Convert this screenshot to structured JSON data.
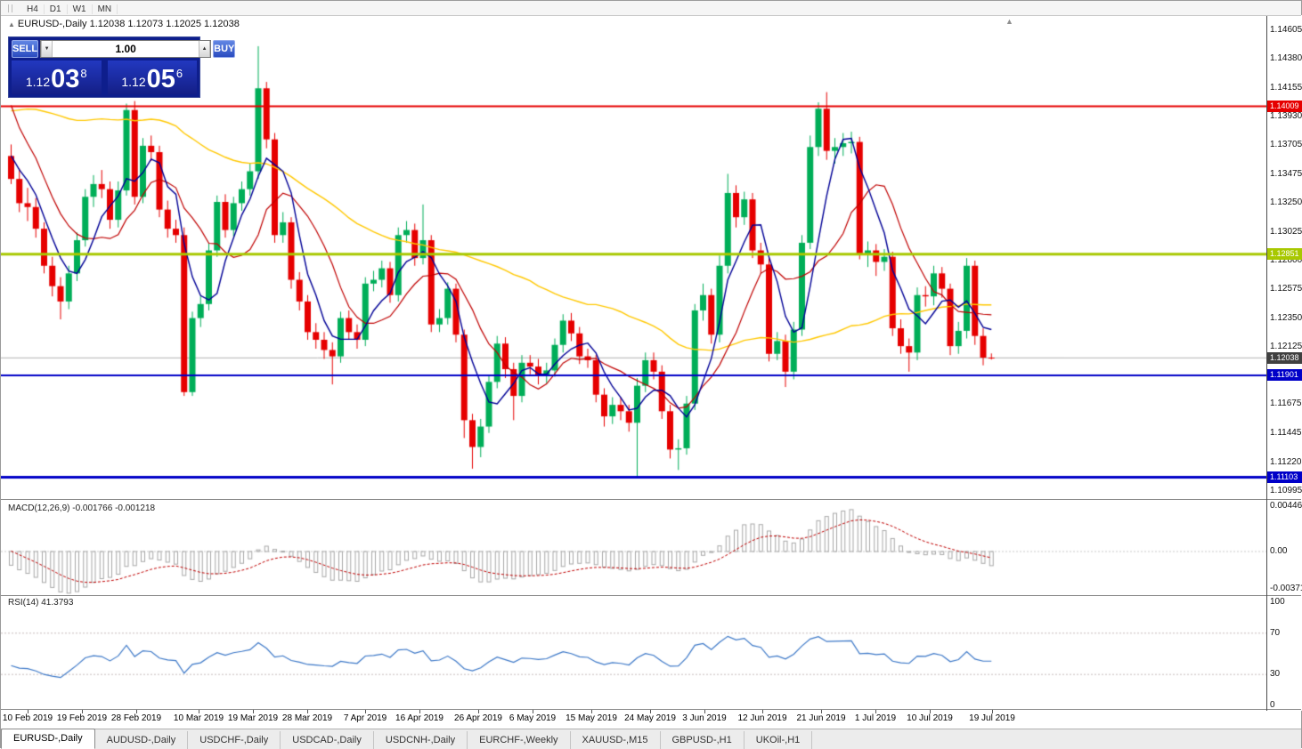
{
  "toolbar": {
    "timeframes": [
      "H4",
      "D1",
      "W1",
      "MN"
    ]
  },
  "chart_header": {
    "title": "EURUSD-,Daily 1.12038 1.12073 1.12025 1.12038"
  },
  "icons": {
    "collapse_arrow": "▲",
    "scroll_marker": "▲",
    "spin_down": "▼",
    "spin_up": "▲"
  },
  "trade_panel": {
    "sell_label": "SELL",
    "buy_label": "BUY",
    "volume": "1.00",
    "sell_price": {
      "prefix": "1.12",
      "big": "03",
      "sup": "8"
    },
    "buy_price": {
      "prefix": "1.12",
      "big": "05",
      "sup": "6"
    }
  },
  "price_axis": {
    "ticks": [
      "1.14605",
      "1.14380",
      "1.14155",
      "1.13930",
      "1.13705",
      "1.13475",
      "1.13250",
      "1.13025",
      "1.12800",
      "1.12575",
      "1.12350",
      "1.12125",
      "1.11900",
      "1.11675",
      "1.11445",
      "1.11220",
      "1.10995"
    ]
  },
  "indicator_panels": {
    "macd": {
      "label": "MACD(12,26,9) -0.001766 -0.001218",
      "params": {
        "fast": 12,
        "slow": 26,
        "signal": 9
      },
      "ticks": [
        {
          "label": "0.004465",
          "value": 0.004465
        },
        {
          "label": "0.00",
          "value": 0
        },
        {
          "label": "-0.003715",
          "value": -0.003715
        }
      ]
    },
    "rsi": {
      "label": "RSI(14) 41.3793",
      "period": 14,
      "levels": [
        70,
        30
      ],
      "ticks": [
        {
          "label": "100",
          "value": 100
        },
        {
          "label": "70",
          "value": 70
        },
        {
          "label": "30",
          "value": 30
        },
        {
          "label": "0",
          "value": 0
        }
      ]
    }
  },
  "date_axis": {
    "labels": [
      "10 Feb 2019",
      "19 Feb 2019",
      "28 Feb 2019",
      "10 Mar 2019",
      "19 Mar 2019",
      "28 Mar 2019",
      "7 Apr 2019",
      "16 Apr 2019",
      "26 Apr 2019",
      "6 May 2019",
      "15 May 2019",
      "24 May 2019",
      "3 Jun 2019",
      "12 Jun 2019",
      "21 Jun 2019",
      "1 Jul 2019",
      "10 Jul 2019",
      "19 Jul 2019"
    ]
  },
  "tabs": {
    "active_index": 0,
    "items": [
      "EURUSD-,Daily",
      "AUDUSD-,Daily",
      "USDCHF-,Daily",
      "USDCAD-,Daily",
      "USDCNH-,Daily",
      "EURCHF-,Weekly",
      "XAUUSD-,M15",
      "GBPUSD-,H1",
      "UKOil-,H1"
    ]
  },
  "chart_data": {
    "type": "candlestick",
    "symbol": "EURUSD-",
    "timeframe": "Daily",
    "ohlc": {
      "open": "1.12038",
      "high": "1.12073",
      "low": "1.12025",
      "close": "1.12038"
    },
    "current_price": {
      "price": 1.12038,
      "label": "1.12038"
    },
    "hlines": [
      {
        "price": 1.14009,
        "label": "1.14009",
        "color": "#E60000",
        "width": 2
      },
      {
        "price": 1.12851,
        "label": "1.12851",
        "color": "#A8C800",
        "width": 3
      },
      {
        "price": 1.11901,
        "label": "1.11901",
        "color": "#0000C8",
        "width": 2
      },
      {
        "price": 1.11103,
        "label": "1.11103",
        "color": "#0000C8",
        "width": 3
      }
    ],
    "moving_averages": [
      {
        "period": 50,
        "color": "#FFC800",
        "width": 1.4
      },
      {
        "period": 10,
        "color": "#C00000",
        "width": 1.2
      },
      {
        "period": 5,
        "color": "#000096",
        "width": 1.4
      }
    ],
    "colors": {
      "bull": "#00AE58",
      "bear": "#E60000",
      "macd_hist": "#A8A8A8",
      "macd_signal": "#C00000",
      "rsi": "#3C78C8",
      "levels": "#C8BCBC",
      "current": "#B4B4B4",
      "current_badge": "#404040"
    },
    "pre_closes": [
      1.133,
      1.129,
      1.1285,
      1.132,
      1.1355,
      1.134,
      1.1345,
      1.138,
      1.136,
      1.133,
      1.1305,
      1.131,
      1.134,
      1.135,
      1.137,
      1.139,
      1.1345,
      1.133,
      1.1355,
      1.14,
      1.143,
      1.1465,
      1.1445,
      1.147,
      1.15,
      1.147,
      1.1455,
      1.1445,
      1.1415,
      1.139,
      1.1395,
      1.1415,
      1.144,
      1.1475,
      1.1465,
      1.148,
      1.145,
      1.142,
      1.141,
      1.143,
      1.1485,
      1.15,
      1.1445,
      1.142,
      1.143,
      1.141,
      1.138,
      1.1365,
      1.136,
      1.1362
    ],
    "candles": [
      [
        1.1362,
        1.1371,
        1.134,
        1.1344
      ],
      [
        1.1344,
        1.1352,
        1.1318,
        1.1325
      ],
      [
        1.1325,
        1.1337,
        1.1311,
        1.1322
      ],
      [
        1.1322,
        1.1329,
        1.1298,
        1.1305
      ],
      [
        1.1305,
        1.131,
        1.127,
        1.1276
      ],
      [
        1.1276,
        1.1283,
        1.1252,
        1.126
      ],
      [
        1.126,
        1.1267,
        1.1234,
        1.1248
      ],
      [
        1.1248,
        1.1276,
        1.1242,
        1.127
      ],
      [
        1.127,
        1.1302,
        1.1264,
        1.1296
      ],
      [
        1.1296,
        1.1336,
        1.1291,
        1.133
      ],
      [
        1.133,
        1.1347,
        1.1322,
        1.134
      ],
      [
        1.134,
        1.1351,
        1.1329,
        1.1336
      ],
      [
        1.1336,
        1.1342,
        1.1305,
        1.1312
      ],
      [
        1.1312,
        1.1342,
        1.1306,
        1.1335
      ],
      [
        1.1335,
        1.1403,
        1.1331,
        1.1398
      ],
      [
        1.1398,
        1.1405,
        1.1324,
        1.133
      ],
      [
        1.133,
        1.1376,
        1.1325,
        1.137
      ],
      [
        1.137,
        1.1378,
        1.1358,
        1.1365
      ],
      [
        1.1365,
        1.137,
        1.1314,
        1.132
      ],
      [
        1.132,
        1.1327,
        1.1298,
        1.1305
      ],
      [
        1.1305,
        1.1312,
        1.1294,
        1.13
      ],
      [
        1.13,
        1.1306,
        1.1174,
        1.1177
      ],
      [
        1.1177,
        1.124,
        1.1174,
        1.1235
      ],
      [
        1.1235,
        1.1252,
        1.1228,
        1.1246
      ],
      [
        1.1246,
        1.1294,
        1.1241,
        1.1288
      ],
      [
        1.1288,
        1.1331,
        1.1283,
        1.1326
      ],
      [
        1.1326,
        1.1332,
        1.1298,
        1.1304
      ],
      [
        1.1304,
        1.133,
        1.1299,
        1.1325
      ],
      [
        1.1325,
        1.1342,
        1.1319,
        1.1336
      ],
      [
        1.1336,
        1.1356,
        1.1331,
        1.135
      ],
      [
        1.135,
        1.1448,
        1.1344,
        1.1415
      ],
      [
        1.1415,
        1.142,
        1.1368,
        1.1375
      ],
      [
        1.1375,
        1.138,
        1.1294,
        1.13
      ],
      [
        1.13,
        1.1318,
        1.1294,
        1.131
      ],
      [
        1.131,
        1.1314,
        1.1258,
        1.1265
      ],
      [
        1.1265,
        1.1271,
        1.1241,
        1.1248
      ],
      [
        1.1248,
        1.1253,
        1.1218,
        1.1224
      ],
      [
        1.1224,
        1.1231,
        1.1211,
        1.1218
      ],
      [
        1.1218,
        1.1224,
        1.1203,
        1.121
      ],
      [
        1.121,
        1.1216,
        1.1183,
        1.1205
      ],
      [
        1.1205,
        1.124,
        1.12,
        1.1235
      ],
      [
        1.1235,
        1.1241,
        1.1218,
        1.1224
      ],
      [
        1.1224,
        1.123,
        1.1211,
        1.1218
      ],
      [
        1.1218,
        1.1267,
        1.1213,
        1.1262
      ],
      [
        1.1262,
        1.1272,
        1.1256,
        1.1265
      ],
      [
        1.1265,
        1.128,
        1.1259,
        1.1274
      ],
      [
        1.1274,
        1.1279,
        1.1247,
        1.1253
      ],
      [
        1.1253,
        1.1306,
        1.1248,
        1.13
      ],
      [
        1.13,
        1.1311,
        1.1294,
        1.1304
      ],
      [
        1.1304,
        1.1309,
        1.1276,
        1.1282
      ],
      [
        1.1282,
        1.1324,
        1.1277,
        1.1296
      ],
      [
        1.1296,
        1.13,
        1.1224,
        1.123
      ],
      [
        1.123,
        1.1242,
        1.1224,
        1.1235
      ],
      [
        1.1235,
        1.1263,
        1.123,
        1.1258
      ],
      [
        1.1258,
        1.1262,
        1.1216,
        1.1222
      ],
      [
        1.1222,
        1.1226,
        1.1141,
        1.1155
      ],
      [
        1.1155,
        1.116,
        1.1117,
        1.1134
      ],
      [
        1.1134,
        1.1156,
        1.1126,
        1.115
      ],
      [
        1.115,
        1.119,
        1.1145,
        1.1185
      ],
      [
        1.1185,
        1.1221,
        1.118,
        1.1215
      ],
      [
        1.1215,
        1.122,
        1.1188,
        1.1195
      ],
      [
        1.1195,
        1.12,
        1.1155,
        1.1174
      ],
      [
        1.1174,
        1.1206,
        1.1169,
        1.12
      ],
      [
        1.12,
        1.1206,
        1.1191,
        1.1197
      ],
      [
        1.1197,
        1.1203,
        1.1183,
        1.119
      ],
      [
        1.119,
        1.12,
        1.1184,
        1.1194
      ],
      [
        1.1194,
        1.1219,
        1.1189,
        1.1214
      ],
      [
        1.1214,
        1.1238,
        1.1208,
        1.1233
      ],
      [
        1.1233,
        1.1239,
        1.1217,
        1.1223
      ],
      [
        1.1223,
        1.1228,
        1.1199,
        1.1205
      ],
      [
        1.1205,
        1.1211,
        1.1196,
        1.1202
      ],
      [
        1.1202,
        1.1206,
        1.1169,
        1.1175
      ],
      [
        1.1175,
        1.118,
        1.115,
        1.1158
      ],
      [
        1.1158,
        1.1173,
        1.1152,
        1.1167
      ],
      [
        1.1167,
        1.1173,
        1.1155,
        1.1162
      ],
      [
        1.1162,
        1.1167,
        1.1146,
        1.1153
      ],
      [
        1.1153,
        1.1188,
        1.111,
        1.1182
      ],
      [
        1.1182,
        1.1208,
        1.1177,
        1.1202
      ],
      [
        1.1202,
        1.1208,
        1.1187,
        1.1193
      ],
      [
        1.1193,
        1.1198,
        1.1156,
        1.1162
      ],
      [
        1.1162,
        1.1167,
        1.1125,
        1.1132
      ],
      [
        1.1132,
        1.114,
        1.1116,
        1.1133
      ],
      [
        1.1133,
        1.1174,
        1.1128,
        1.1168
      ],
      [
        1.1168,
        1.1246,
        1.1163,
        1.1241
      ],
      [
        1.1241,
        1.1262,
        1.1233,
        1.1253
      ],
      [
        1.1253,
        1.1258,
        1.1215,
        1.1222
      ],
      [
        1.1222,
        1.1284,
        1.1216,
        1.1276
      ],
      [
        1.1276,
        1.1348,
        1.127,
        1.1333
      ],
      [
        1.1333,
        1.1339,
        1.1306,
        1.1314
      ],
      [
        1.1314,
        1.1334,
        1.1308,
        1.1328
      ],
      [
        1.1328,
        1.1333,
        1.1282,
        1.1288
      ],
      [
        1.1288,
        1.1294,
        1.127,
        1.1277
      ],
      [
        1.1277,
        1.1282,
        1.1201,
        1.1207
      ],
      [
        1.1207,
        1.1224,
        1.1202,
        1.1217
      ],
      [
        1.1217,
        1.1222,
        1.1181,
        1.1193
      ],
      [
        1.1193,
        1.1232,
        1.1187,
        1.1226
      ],
      [
        1.1226,
        1.13,
        1.1221,
        1.1294
      ],
      [
        1.1294,
        1.1378,
        1.1289,
        1.1369
      ],
      [
        1.1369,
        1.1404,
        1.1362,
        1.1399
      ],
      [
        1.1399,
        1.1412,
        1.1359,
        1.1366
      ],
      [
        1.1366,
        1.1376,
        1.1356,
        1.1369
      ],
      [
        1.1369,
        1.138,
        1.1362,
        1.1372
      ],
      [
        1.1372,
        1.1381,
        1.1364,
        1.1373
      ],
      [
        1.1373,
        1.1377,
        1.1281,
        1.1285
      ],
      [
        1.1285,
        1.1295,
        1.1275,
        1.1288
      ],
      [
        1.1288,
        1.1293,
        1.1268,
        1.1279
      ],
      [
        1.1279,
        1.1289,
        1.1272,
        1.1283
      ],
      [
        1.1283,
        1.1287,
        1.1221,
        1.1227
      ],
      [
        1.1227,
        1.1234,
        1.1207,
        1.1213
      ],
      [
        1.1213,
        1.1219,
        1.1193,
        1.1208
      ],
      [
        1.1208,
        1.1259,
        1.1202,
        1.1253
      ],
      [
        1.1253,
        1.126,
        1.1244,
        1.1252
      ],
      [
        1.1252,
        1.1276,
        1.1245,
        1.127
      ],
      [
        1.127,
        1.1275,
        1.1251,
        1.1258
      ],
      [
        1.1258,
        1.1262,
        1.1206,
        1.1213
      ],
      [
        1.1213,
        1.1232,
        1.1207,
        1.1225
      ],
      [
        1.1225,
        1.1282,
        1.1219,
        1.1276
      ],
      [
        1.1276,
        1.128,
        1.1214,
        1.1221
      ],
      [
        1.1221,
        1.1227,
        1.1198,
        1.1204
      ],
      [
        1.1204,
        1.12073,
        1.12025,
        1.12038
      ]
    ]
  }
}
